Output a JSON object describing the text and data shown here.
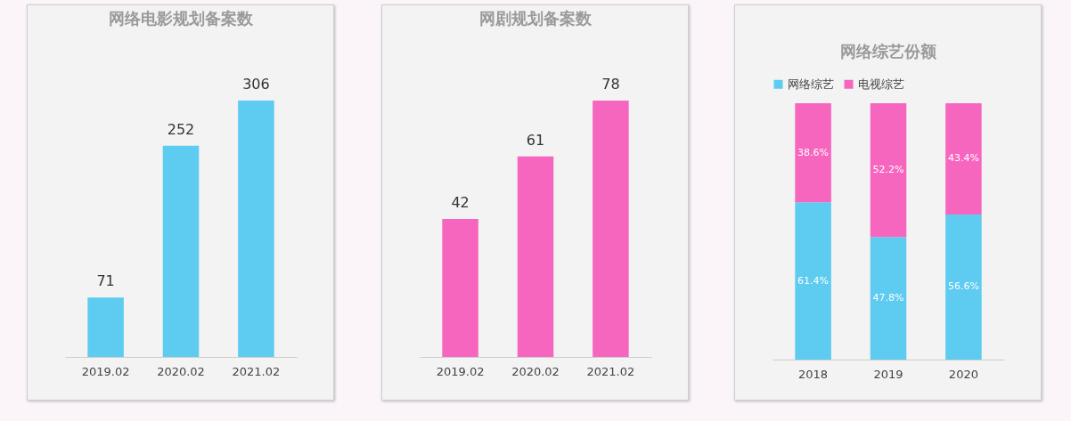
{
  "chart_data": [
    {
      "type": "bar",
      "title": "网络电影规划备案数",
      "categories": [
        "2019.02",
        "2020.02",
        "2021.02"
      ],
      "values": [
        71,
        252,
        306
      ],
      "color": "#5ecbf0",
      "data_labels": true,
      "tick_labels": "x"
    },
    {
      "type": "bar",
      "title": "网剧规划备案数",
      "categories": [
        "2019.02",
        "2020.02",
        "2021.02"
      ],
      "values": [
        42,
        61,
        78
      ],
      "color": "#f766be",
      "data_labels": true,
      "tick_labels": "x"
    },
    {
      "type": "bar",
      "title": "网络综艺份额",
      "categories": [
        "2018",
        "2019",
        "2020"
      ],
      "stacked": true,
      "legend": "top",
      "tick_labels": "x",
      "series": [
        {
          "name": "网络综艺",
          "color": "#5ecbf0",
          "values": [
            61.4,
            47.8,
            56.6
          ],
          "value_labels": [
            "61.4%",
            "47.8%",
            "56.6%"
          ]
        },
        {
          "name": "电视综艺",
          "color": "#f766be",
          "values": [
            38.6,
            52.2,
            43.4
          ],
          "value_labels": [
            "38.6%",
            "52.2%",
            "43.4%"
          ]
        }
      ]
    }
  ]
}
